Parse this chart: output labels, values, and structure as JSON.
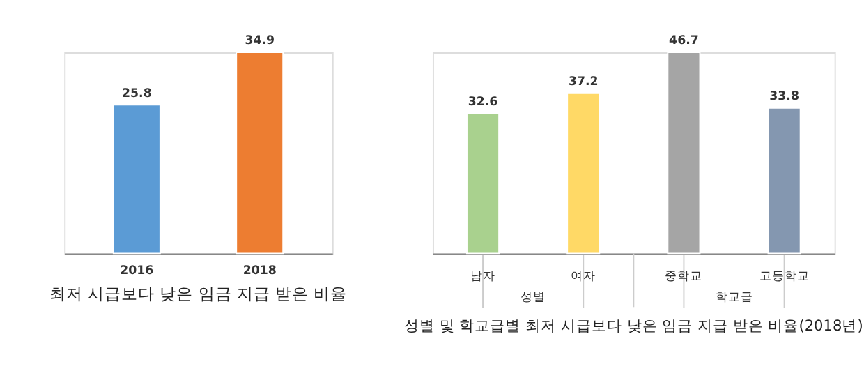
{
  "chart_data": [
    {
      "type": "bar",
      "title": "최저 시급보다 낮은 임금 지급 받은 비율",
      "categories": [
        "2016",
        "2018"
      ],
      "values": [
        25.8,
        34.9
      ],
      "colors": [
        "#5b9bd5",
        "#ed7d31"
      ],
      "data_labels": true
    },
    {
      "type": "bar",
      "title": "성별 및 학교급별 최저 시급보다 낮은 임금 지급 받은 비율(2018년)",
      "categories": [
        "남자",
        "여자",
        "중학교",
        "고등학교"
      ],
      "values": [
        32.6,
        37.2,
        46.7,
        33.8
      ],
      "colors": [
        "#a9d18e",
        "#ffd966",
        "#a5a5a5",
        "#8497b0"
      ],
      "data_labels": true,
      "annotations": [
        "성별",
        "학교급"
      ]
    }
  ]
}
